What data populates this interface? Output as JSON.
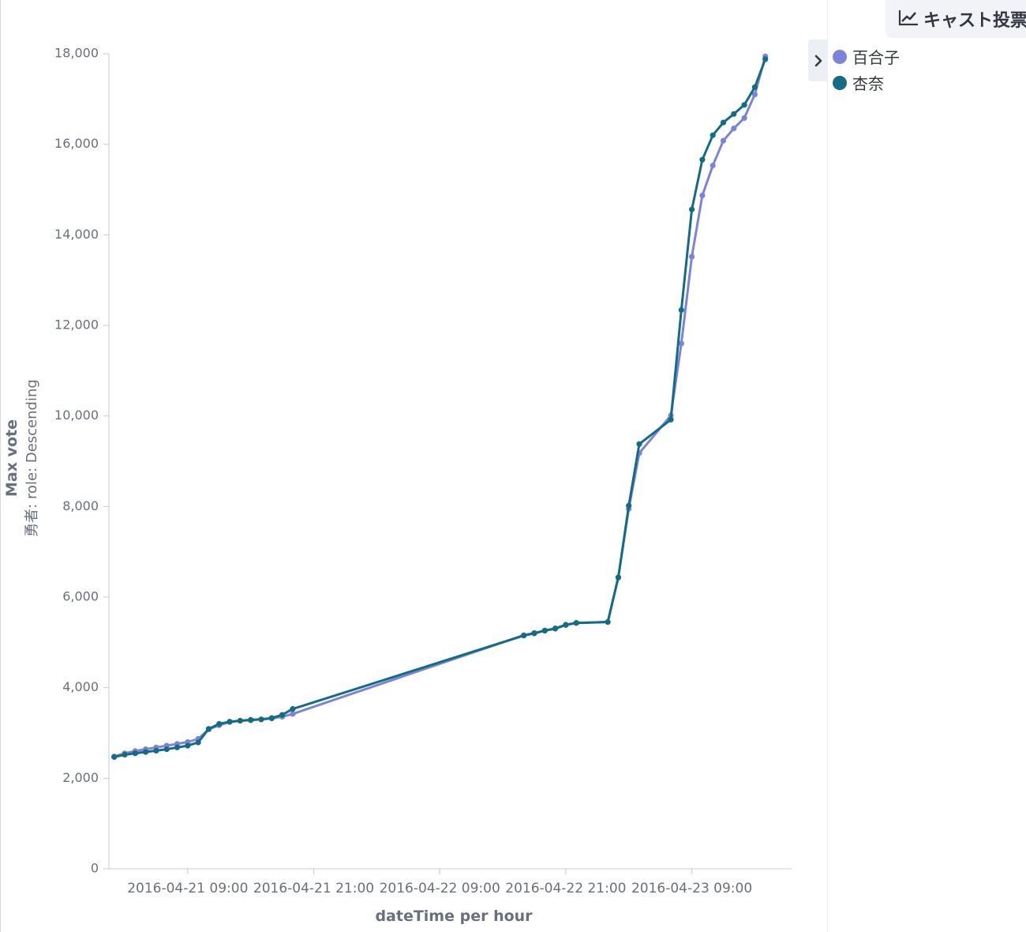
{
  "panel": {
    "title": "キャスト投票",
    "title_icon": "line-chart-icon",
    "legend_toggle_icon": "chevron-right-icon"
  },
  "chart_data": {
    "type": "line",
    "xlabel": "dateTime per hour",
    "ylabel": "Max vote",
    "ylabel_sub": "勇者: role: Descending",
    "ylim": [
      0,
      18000
    ],
    "y_ticks": [
      0,
      2000,
      4000,
      6000,
      8000,
      10000,
      12000,
      14000,
      16000,
      18000
    ],
    "y_tick_labels": [
      "0",
      "2,000",
      "4,000",
      "6,000",
      "8,000",
      "10,000",
      "12,000",
      "14,000",
      "16,000",
      "18,000"
    ],
    "x_ticks": [
      "2016-04-21 09:00",
      "2016-04-21 21:00",
      "2016-04-22 09:00",
      "2016-04-22 21:00",
      "2016-04-23 09:00"
    ],
    "x_tick_labels": [
      "2016-04-21 09:00",
      "2016-04-21 21:00",
      "2016-04-22 09:00",
      "2016-04-22 21:00",
      "2016-04-23 09:00"
    ],
    "xlim": [
      "2016-04-21 01:30",
      "2016-04-23 18:30"
    ],
    "grid": false,
    "legend_position": "right",
    "series": [
      {
        "name": "百合子",
        "color": "#7b84d8",
        "points": [
          [
            "2016-04-21 02:00",
            2480
          ],
          [
            "2016-04-21 03:00",
            2550
          ],
          [
            "2016-04-21 04:00",
            2600
          ],
          [
            "2016-04-21 05:00",
            2640
          ],
          [
            "2016-04-21 06:00",
            2680
          ],
          [
            "2016-04-21 07:00",
            2720
          ],
          [
            "2016-04-21 08:00",
            2760
          ],
          [
            "2016-04-21 09:00",
            2800
          ],
          [
            "2016-04-21 10:00",
            2870
          ],
          [
            "2016-04-21 11:00",
            3080
          ],
          [
            "2016-04-21 12:00",
            3170
          ],
          [
            "2016-04-21 13:00",
            3240
          ],
          [
            "2016-04-21 14:00",
            3270
          ],
          [
            "2016-04-21 15:00",
            3280
          ],
          [
            "2016-04-21 16:00",
            3300
          ],
          [
            "2016-04-21 17:00",
            3320
          ],
          [
            "2016-04-21 18:00",
            3360
          ],
          [
            "2016-04-21 19:00",
            3420
          ],
          [
            "2016-04-22 17:00",
            5160
          ],
          [
            "2016-04-22 18:00",
            5210
          ],
          [
            "2016-04-22 19:00",
            5260
          ],
          [
            "2016-04-22 20:00",
            5300
          ],
          [
            "2016-04-22 21:00",
            5380
          ],
          [
            "2016-04-22 22:00",
            5430
          ],
          [
            "2016-04-23 01:00",
            5450
          ],
          [
            "2016-04-23 02:00",
            6440
          ],
          [
            "2016-04-23 03:00",
            7950
          ],
          [
            "2016-04-23 04:00",
            9180
          ],
          [
            "2016-04-23 07:00",
            10010
          ],
          [
            "2016-04-23 08:00",
            11600
          ],
          [
            "2016-04-23 09:00",
            13520
          ],
          [
            "2016-04-23 10:00",
            14870
          ],
          [
            "2016-04-23 11:00",
            15530
          ],
          [
            "2016-04-23 12:00",
            16080
          ],
          [
            "2016-04-23 13:00",
            16350
          ],
          [
            "2016-04-23 14:00",
            16580
          ],
          [
            "2016-04-23 15:00",
            17100
          ],
          [
            "2016-04-23 16:00",
            17940
          ]
        ]
      },
      {
        "name": "杏奈",
        "color": "#146c84",
        "points": [
          [
            "2016-04-21 02:00",
            2470
          ],
          [
            "2016-04-21 03:00",
            2520
          ],
          [
            "2016-04-21 04:00",
            2550
          ],
          [
            "2016-04-21 05:00",
            2580
          ],
          [
            "2016-04-21 06:00",
            2610
          ],
          [
            "2016-04-21 07:00",
            2640
          ],
          [
            "2016-04-21 08:00",
            2680
          ],
          [
            "2016-04-21 09:00",
            2720
          ],
          [
            "2016-04-21 10:00",
            2790
          ],
          [
            "2016-04-21 11:00",
            3090
          ],
          [
            "2016-04-21 12:00",
            3200
          ],
          [
            "2016-04-21 13:00",
            3250
          ],
          [
            "2016-04-21 14:00",
            3270
          ],
          [
            "2016-04-21 15:00",
            3290
          ],
          [
            "2016-04-21 16:00",
            3300
          ],
          [
            "2016-04-21 17:00",
            3330
          ],
          [
            "2016-04-21 18:00",
            3400
          ],
          [
            "2016-04-21 19:00",
            3530
          ],
          [
            "2016-04-22 17:00",
            5150
          ],
          [
            "2016-04-22 18:00",
            5200
          ],
          [
            "2016-04-22 19:00",
            5260
          ],
          [
            "2016-04-22 20:00",
            5310
          ],
          [
            "2016-04-22 21:00",
            5390
          ],
          [
            "2016-04-22 22:00",
            5430
          ],
          [
            "2016-04-23 01:00",
            5450
          ],
          [
            "2016-04-23 02:00",
            6430
          ],
          [
            "2016-04-23 03:00",
            8020
          ],
          [
            "2016-04-23 04:00",
            9380
          ],
          [
            "2016-04-23 07:00",
            9920
          ],
          [
            "2016-04-23 08:00",
            12340
          ],
          [
            "2016-04-23 09:00",
            14560
          ],
          [
            "2016-04-23 10:00",
            15660
          ],
          [
            "2016-04-23 11:00",
            16200
          ],
          [
            "2016-04-23 12:00",
            16480
          ],
          [
            "2016-04-23 13:00",
            16670
          ],
          [
            "2016-04-23 14:00",
            16870
          ],
          [
            "2016-04-23 15:00",
            17260
          ],
          [
            "2016-04-23 16:00",
            17880
          ]
        ]
      }
    ]
  }
}
